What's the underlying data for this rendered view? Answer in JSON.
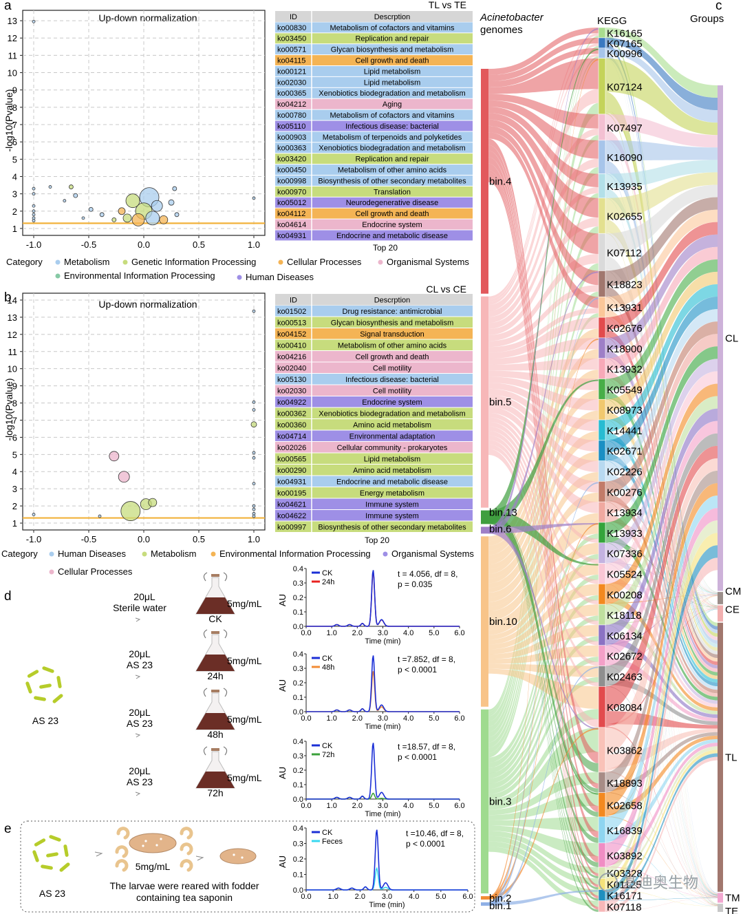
{
  "panel_letters": {
    "a": "a",
    "b": "b",
    "c": "c",
    "d": "d",
    "e": "e"
  },
  "panel_a": {
    "plot_title": "Up-down normalization",
    "table_title": "TL vs TE",
    "ylabel": "-log10(Pvalue)",
    "yticks": [
      "1",
      "2",
      "3",
      "4",
      "5",
      "6",
      "7",
      "8",
      "9",
      "10",
      "11",
      "12",
      "13"
    ],
    "xticks": [
      "-1.0",
      "-0.5",
      "0.0",
      "0.5",
      "1.0"
    ],
    "header_id": "ID",
    "header_desc": "Descrption",
    "footer": "Top 20",
    "rows": [
      {
        "id": "ko00830",
        "desc": "Metabolism of cofactors and vitamins",
        "cat": "M"
      },
      {
        "id": "ko03450",
        "desc": "Replication and repair",
        "cat": "G"
      },
      {
        "id": "ko00571",
        "desc": "Glycan biosynthesis and metabolism",
        "cat": "M"
      },
      {
        "id": "ko04115",
        "desc": "Cell growth and death",
        "cat": "C"
      },
      {
        "id": "ko00121",
        "desc": "Lipid metabolism",
        "cat": "M"
      },
      {
        "id": "ko02030",
        "desc": "Lipid metabolism",
        "cat": "M"
      },
      {
        "id": "ko00365",
        "desc": "Xenobiotics biodegradation and metabolism",
        "cat": "M"
      },
      {
        "id": "ko04212",
        "desc": "Aging",
        "cat": "O"
      },
      {
        "id": "ko00780",
        "desc": "Metabolism of cofactors and vitamins",
        "cat": "M"
      },
      {
        "id": "ko05110",
        "desc": "Infectious disease: bacterial",
        "cat": "H"
      },
      {
        "id": "ko00903",
        "desc": "Metabolism of terpenoids and polyketides",
        "cat": "M"
      },
      {
        "id": "ko00363",
        "desc": "Xenobiotics biodegradation and metabolism",
        "cat": "M"
      },
      {
        "id": "ko03420",
        "desc": "Replication and repair",
        "cat": "G"
      },
      {
        "id": "ko00450",
        "desc": "Metabolism of other amino acids",
        "cat": "M"
      },
      {
        "id": "ko00998",
        "desc": "Biosynthesis of other secondary metabolites",
        "cat": "M"
      },
      {
        "id": "ko00970",
        "desc": "Translation",
        "cat": "G"
      },
      {
        "id": "ko05012",
        "desc": "Neurodegenerative disease",
        "cat": "H"
      },
      {
        "id": "ko04112",
        "desc": "Cell growth and death",
        "cat": "C"
      },
      {
        "id": "ko04614",
        "desc": "Endocrine system",
        "cat": "O"
      },
      {
        "id": "ko04931",
        "desc": "Endocrine and metabolic disease",
        "cat": "H"
      }
    ],
    "legend_title": "Category",
    "legend": [
      {
        "label": "Metabolism",
        "cat": "M"
      },
      {
        "label": "Genetic Information Processing",
        "cat": "G"
      },
      {
        "label": "Cellular Processes",
        "cat": "C"
      },
      {
        "label": "Organismal Systems",
        "cat": "O"
      },
      {
        "label": "Environmental Information Processing",
        "cat": "E"
      },
      {
        "label": "Human Diseases",
        "cat": "H"
      }
    ]
  },
  "panel_b": {
    "plot_title": "Up-down normalization",
    "table_title": "CL vs CE",
    "ylabel": "-log10(Pvalue)",
    "yticks": [
      "1",
      "2",
      "3",
      "4",
      "5",
      "6",
      "7",
      "8",
      "9",
      "10",
      "11",
      "12",
      "13",
      "14"
    ],
    "xticks": [
      "-1.0",
      "-0.5",
      "0.0",
      "0.5",
      "1.0"
    ],
    "header_id": "ID",
    "header_desc": "Descrption",
    "footer": "Top 20",
    "rows": [
      {
        "id": "ko01502",
        "desc": "Drug resistance: antimicrobial",
        "cat": "h"
      },
      {
        "id": "ko00513",
        "desc": "Glycan biosynthesis and metabolism",
        "cat": "m"
      },
      {
        "id": "ko04152",
        "desc": "Signal transduction",
        "cat": "e"
      },
      {
        "id": "ko00410",
        "desc": "Metabolism of other amino acids",
        "cat": "m"
      },
      {
        "id": "ko04216",
        "desc": "Cell growth and death",
        "cat": "c"
      },
      {
        "id": "ko02040",
        "desc": "Cell motility",
        "cat": "c"
      },
      {
        "id": "ko05130",
        "desc": "Infectious disease: bacterial",
        "cat": "h"
      },
      {
        "id": "ko02030",
        "desc": "Cell motility",
        "cat": "c"
      },
      {
        "id": "ko04922",
        "desc": "Endocrine system",
        "cat": "o"
      },
      {
        "id": "ko00362",
        "desc": "Xenobiotics biodegradation and metabolism",
        "cat": "m"
      },
      {
        "id": "ko00360",
        "desc": "Amino acid metabolism",
        "cat": "m"
      },
      {
        "id": "ko04714",
        "desc": "Environmental adaptation",
        "cat": "o"
      },
      {
        "id": "ko02026",
        "desc": "Cellular community - prokaryotes",
        "cat": "c"
      },
      {
        "id": "ko00565",
        "desc": "Lipid metabolism",
        "cat": "m"
      },
      {
        "id": "ko00290",
        "desc": "Amino acid metabolism",
        "cat": "m"
      },
      {
        "id": "ko04931",
        "desc": "Endocrine and metabolic disease",
        "cat": "h"
      },
      {
        "id": "ko00195",
        "desc": "Energy metabolism",
        "cat": "m"
      },
      {
        "id": "ko04621",
        "desc": "Immune system",
        "cat": "o"
      },
      {
        "id": "ko04622",
        "desc": "Immune system",
        "cat": "o"
      },
      {
        "id": "ko00997",
        "desc": "Biosynthesis of other secondary metabolites",
        "cat": "m"
      }
    ],
    "legend_title": "Category",
    "legend": [
      {
        "label": "Human Diseases",
        "cat": "h"
      },
      {
        "label": "Metabolism",
        "cat": "m"
      },
      {
        "label": "Environmental Information Processing",
        "cat": "e"
      },
      {
        "label": "Organismal Systems",
        "cat": "o"
      },
      {
        "label": "Cellular Processes",
        "cat": "c"
      }
    ]
  },
  "colors": {
    "M": "#a9cdee",
    "G": "#c7dc7d",
    "C": "#f4b455",
    "O": "#ecb6cc",
    "E": "#86c9a5",
    "H": "#9e8fe6",
    "h": "#a9cdee",
    "m": "#c7dc7d",
    "e": "#f4b455",
    "o": "#9e8fe6",
    "c": "#ecb6cc",
    "threshold": "#f2b23a",
    "header": "#d6d6d6"
  },
  "sankey": {
    "col1_title_1": "Acinetobacter",
    "col1_title_2": "genomes",
    "col2_title": "KEGG",
    "col3_title": "Groups",
    "bins": [
      {
        "label": "bin.4",
        "color": "#e2595c",
        "value": 33
      },
      {
        "label": "bin.5",
        "color": "#f7b7b8",
        "value": 31
      },
      {
        "label": "bin.13",
        "color": "#3f9e3f",
        "value": 2
      },
      {
        "label": "bin.6",
        "color": "#9e7fc7",
        "value": 1
      },
      {
        "label": "bin.10",
        "color": "#f8c489",
        "value": 25
      },
      {
        "label": "bin.3",
        "color": "#9fdb8f",
        "value": 27
      },
      {
        "label": "bin.2",
        "color": "#f28c35",
        "value": 0.5
      },
      {
        "label": "bin.1",
        "color": "#8fb0e6",
        "value": 0.5
      }
    ],
    "kegg": [
      {
        "label": "K16165",
        "color": "#a9dd8e"
      },
      {
        "label": "K07165",
        "color": "#3a79c1"
      },
      {
        "label": "K00996",
        "color": "#a7c5ea"
      },
      {
        "label": "K07124",
        "color": "#c4d35a"
      },
      {
        "label": "K07497",
        "color": "#f3c0d2"
      },
      {
        "label": "K16090",
        "color": "#a7c5ea"
      },
      {
        "label": "K13935",
        "color": "#b3e0e8"
      },
      {
        "label": "K02655",
        "color": "#e3e08f"
      },
      {
        "label": "K07112",
        "color": "#dadada"
      },
      {
        "label": "K18823",
        "color": "#a1776e"
      },
      {
        "label": "K13931",
        "color": "#fbc799"
      },
      {
        "label": "K02676",
        "color": "#e24b4d"
      },
      {
        "label": "K18900",
        "color": "#9e7fc7"
      },
      {
        "label": "K13932",
        "color": "#f7a9b8"
      },
      {
        "label": "K05549",
        "color": "#47ae47"
      },
      {
        "label": "K08973",
        "color": "#f1c86e"
      },
      {
        "label": "K14441",
        "color": "#27bcd2"
      },
      {
        "label": "K02671",
        "color": "#1a8fc4"
      },
      {
        "label": "K02226",
        "color": "#b8d9f0"
      },
      {
        "label": "K00276",
        "color": "#c27b69"
      },
      {
        "label": "K13934",
        "color": "#f0a9a0"
      },
      {
        "label": "K13933",
        "color": "#34a43a"
      },
      {
        "label": "K07336",
        "color": "#c4b2e0"
      },
      {
        "label": "K05524",
        "color": "#fac7d5"
      },
      {
        "label": "K00208",
        "color": "#f3891f"
      },
      {
        "label": "K18118",
        "color": "#bfe09e"
      },
      {
        "label": "K06134",
        "color": "#8b72c4"
      },
      {
        "label": "K02672",
        "color": "#f4a0c8"
      },
      {
        "label": "K02463",
        "color": "#8f8f8f"
      },
      {
        "label": "K08084",
        "color": "#e24b4d"
      },
      {
        "label": "K03862",
        "color": "#f9c2b8"
      },
      {
        "label": "K18893",
        "color": "#a78c86"
      },
      {
        "label": "K02658",
        "color": "#f3891f"
      },
      {
        "label": "K16839",
        "color": "#8ed5f0"
      },
      {
        "label": "K03892",
        "color": "#f08dc4"
      },
      {
        "label": "K03328",
        "color": "#d9e5b3"
      },
      {
        "label": "K01125",
        "color": "#f5e27a"
      },
      {
        "label": "K16171",
        "color": "#1f8fbf"
      },
      {
        "label": "K07118",
        "color": "#f7b7b8"
      }
    ],
    "groups": [
      {
        "label": "CL",
        "color": "#cdb2d9",
        "value": 62
      },
      {
        "label": "CM",
        "color": "#9b8e8a",
        "value": 1.5
      },
      {
        "label": "CE",
        "color": "#f2b0b0",
        "value": 2
      },
      {
        "label": "TL",
        "color": "#a1776e",
        "value": 33
      },
      {
        "label": "TM",
        "color": "#f2a7d0",
        "value": 1.2
      },
      {
        "label": "TE",
        "color": "#c8c8c8",
        "value": 1
      }
    ]
  },
  "panel_d": {
    "bacterium_label": "AS 23",
    "treatments": [
      {
        "line1": "20μL",
        "line2": "Sterile water",
        "flask": "CK",
        "conc": "5mg/mL"
      },
      {
        "line1": "20μL",
        "line2": "AS 23",
        "flask": "24h",
        "conc": "5mg/mL"
      },
      {
        "line1": "20μL",
        "line2": "AS 23",
        "flask": "48h",
        "conc": "5mg/mL"
      },
      {
        "line1": "20μL",
        "line2": "AS 23",
        "flask": "72h",
        "conc": "5mg/mL"
      }
    ],
    "charts": [
      {
        "ck_label": "CK",
        "s_label": "24h",
        "s_color": "#e8221f",
        "stat1": "t = 4.056, df = 8,",
        "stat2": "p = 0.035",
        "peak": 0.38
      },
      {
        "ck_label": "CK",
        "s_label": "48h",
        "s_color": "#f28c35",
        "stat1": "t =7.852, df = 8,",
        "stat2": "p < 0.0001",
        "peak": 0.28
      },
      {
        "ck_label": "CK",
        "s_label": "72h",
        "s_color": "#3aa13a",
        "stat1": "t =18.57, df = 8,",
        "stat2": "p < 0.0001",
        "peak": 0.04
      }
    ],
    "ylabel": "AU",
    "xlabel": "Time (min)",
    "xticks": [
      "0.0",
      "1.0",
      "2.0",
      "3.0",
      "4.0",
      "5.0",
      "6.0"
    ],
    "yticks": [
      "0.0",
      "0.1",
      "0.2",
      "0.3",
      "0.4"
    ]
  },
  "panel_e": {
    "bacterium_label": "AS 23",
    "conc": "5mg/mL",
    "caption1": "The larvae were reared with fodder",
    "caption2": "containing tea saponin",
    "ck_label": "CK",
    "s_label": "Feces",
    "s_color": "#38d8f0",
    "stat1": "t =10.46, df = 8,",
    "stat2": "p < 0.0001",
    "ylabel": "AU",
    "xlabel": "Time (min)",
    "xticks": [
      "0.0",
      "1.0",
      "2.0",
      "3.0",
      "4.0",
      "5.0",
      "6.0"
    ],
    "yticks": [
      "0.0",
      "0.1",
      "0.2",
      "0.3",
      "0.4"
    ],
    "peak": 0.14
  },
  "watermark": "基迪奥生物",
  "chart_data": [
    {
      "type": "scatter",
      "title": "Up-down normalization (TL vs TE)",
      "xlabel": "",
      "ylabel": "-log10(Pvalue)",
      "xlim": [
        -1.1,
        1.1
      ],
      "ylim": [
        0.6,
        13.6
      ],
      "threshold": 1.3,
      "points": [
        {
          "x": -1.0,
          "y": 12.95,
          "s": 2,
          "c": "M"
        },
        {
          "x": -1.0,
          "y": 3.3,
          "s": 2,
          "c": "M"
        },
        {
          "x": -1.0,
          "y": 3.0,
          "s": 2,
          "c": "M"
        },
        {
          "x": -1.0,
          "y": 2.3,
          "s": 2,
          "c": "M"
        },
        {
          "x": -1.0,
          "y": 2.0,
          "s": 2,
          "c": "M"
        },
        {
          "x": -1.0,
          "y": 1.8,
          "s": 2,
          "c": "M"
        },
        {
          "x": -1.0,
          "y": 1.6,
          "s": 2,
          "c": "M"
        },
        {
          "x": -1.0,
          "y": 1.45,
          "s": 2,
          "c": "M"
        },
        {
          "x": -0.85,
          "y": 3.4,
          "s": 2,
          "c": "M"
        },
        {
          "x": -0.72,
          "y": 2.6,
          "s": 2,
          "c": "M"
        },
        {
          "x": -0.66,
          "y": 3.4,
          "s": 3,
          "c": "G"
        },
        {
          "x": -0.62,
          "y": 2.9,
          "s": 3,
          "c": "M"
        },
        {
          "x": -0.55,
          "y": 1.6,
          "s": 2,
          "c": "M"
        },
        {
          "x": -0.48,
          "y": 2.1,
          "s": 3,
          "c": "M"
        },
        {
          "x": -0.38,
          "y": 1.8,
          "s": 3,
          "c": "M"
        },
        {
          "x": -0.27,
          "y": 1.5,
          "s": 3,
          "c": "G"
        },
        {
          "x": -0.2,
          "y": 2.0,
          "s": 5,
          "c": "C"
        },
        {
          "x": -0.15,
          "y": 1.6,
          "s": 6,
          "c": "G"
        },
        {
          "x": -0.1,
          "y": 2.6,
          "s": 10,
          "c": "G"
        },
        {
          "x": -0.05,
          "y": 1.5,
          "s": 9,
          "c": "C"
        },
        {
          "x": 0.0,
          "y": 2.0,
          "s": 12,
          "c": "G"
        },
        {
          "x": 0.05,
          "y": 2.8,
          "s": 14,
          "c": "M"
        },
        {
          "x": 0.08,
          "y": 1.6,
          "s": 10,
          "c": "M"
        },
        {
          "x": 0.12,
          "y": 2.3,
          "s": 8,
          "c": "M"
        },
        {
          "x": 0.18,
          "y": 1.5,
          "s": 6,
          "c": "C"
        },
        {
          "x": 0.25,
          "y": 2.5,
          "s": 4,
          "c": "M"
        },
        {
          "x": 0.28,
          "y": 3.3,
          "s": 3,
          "c": "M"
        },
        {
          "x": 0.3,
          "y": 1.8,
          "s": 3,
          "c": "M"
        },
        {
          "x": 1.0,
          "y": 2.75,
          "s": 2,
          "c": "M"
        }
      ]
    },
    {
      "type": "scatter",
      "title": "Up-down normalization (CL vs CE)",
      "xlabel": "",
      "ylabel": "-log10(Pvalue)",
      "xlim": [
        -1.1,
        1.1
      ],
      "ylim": [
        0.6,
        14.4
      ],
      "threshold": 1.3,
      "points": [
        {
          "x": -1.0,
          "y": 1.5,
          "s": 2,
          "c": "h"
        },
        {
          "x": -0.4,
          "y": 1.4,
          "s": 2,
          "c": "h"
        },
        {
          "x": -0.27,
          "y": 4.9,
          "s": 7,
          "c": "c"
        },
        {
          "x": -0.18,
          "y": 3.7,
          "s": 8,
          "c": "c"
        },
        {
          "x": -0.12,
          "y": 1.7,
          "s": 14,
          "c": "m"
        },
        {
          "x": 0.02,
          "y": 2.1,
          "s": 8,
          "c": "m"
        },
        {
          "x": 0.08,
          "y": 2.2,
          "s": 6,
          "c": "m"
        },
        {
          "x": 1.0,
          "y": 13.35,
          "s": 2,
          "c": "h"
        },
        {
          "x": 1.0,
          "y": 8.05,
          "s": 2,
          "c": "h"
        },
        {
          "x": 1.0,
          "y": 7.6,
          "s": 2,
          "c": "h"
        },
        {
          "x": 1.0,
          "y": 6.75,
          "s": 4,
          "c": "m"
        },
        {
          "x": 1.0,
          "y": 5.1,
          "s": 2,
          "c": "h"
        },
        {
          "x": 1.0,
          "y": 4.8,
          "s": 2,
          "c": "h"
        },
        {
          "x": 1.0,
          "y": 3.3,
          "s": 2,
          "c": "h"
        },
        {
          "x": 1.0,
          "y": 2.0,
          "s": 2,
          "c": "h"
        },
        {
          "x": 1.0,
          "y": 1.8,
          "s": 2,
          "c": "h"
        },
        {
          "x": 1.0,
          "y": 1.55,
          "s": 2,
          "c": "h"
        },
        {
          "x": 1.0,
          "y": 1.4,
          "s": 2,
          "c": "h"
        }
      ]
    },
    {
      "type": "line",
      "title": "CK vs 24h",
      "xlabel": "Time (min)",
      "ylabel": "AU",
      "xlim": [
        0,
        6
      ],
      "ylim": [
        0,
        0.4
      ],
      "series": [
        {
          "name": "CK",
          "peak_x": 2.6,
          "peak_y": 0.39
        },
        {
          "name": "24h",
          "peak_x": 2.65,
          "peak_y": 0.38
        }
      ]
    },
    {
      "type": "line",
      "title": "CK vs 48h",
      "xlabel": "Time (min)",
      "ylabel": "AU",
      "xlim": [
        0,
        6
      ],
      "ylim": [
        0,
        0.4
      ],
      "series": [
        {
          "name": "CK",
          "peak_x": 2.6,
          "peak_y": 0.39
        },
        {
          "name": "48h",
          "peak_x": 2.6,
          "peak_y": 0.28
        }
      ]
    },
    {
      "type": "line",
      "title": "CK vs 72h",
      "xlabel": "Time (min)",
      "ylabel": "AU",
      "xlim": [
        0,
        6
      ],
      "ylim": [
        0,
        0.4
      ],
      "series": [
        {
          "name": "CK",
          "peak_x": 2.6,
          "peak_y": 0.39
        },
        {
          "name": "72h",
          "peak_x": 2.6,
          "peak_y": 0.04
        }
      ]
    },
    {
      "type": "line",
      "title": "CK vs Feces",
      "xlabel": "Time (min)",
      "ylabel": "AU",
      "xlim": [
        0,
        6
      ],
      "ylim": [
        0,
        0.4
      ],
      "series": [
        {
          "name": "CK",
          "peak_x": 2.6,
          "peak_y": 0.39
        },
        {
          "name": "Feces",
          "peak_x": 2.6,
          "peak_y": 0.14
        }
      ]
    }
  ]
}
